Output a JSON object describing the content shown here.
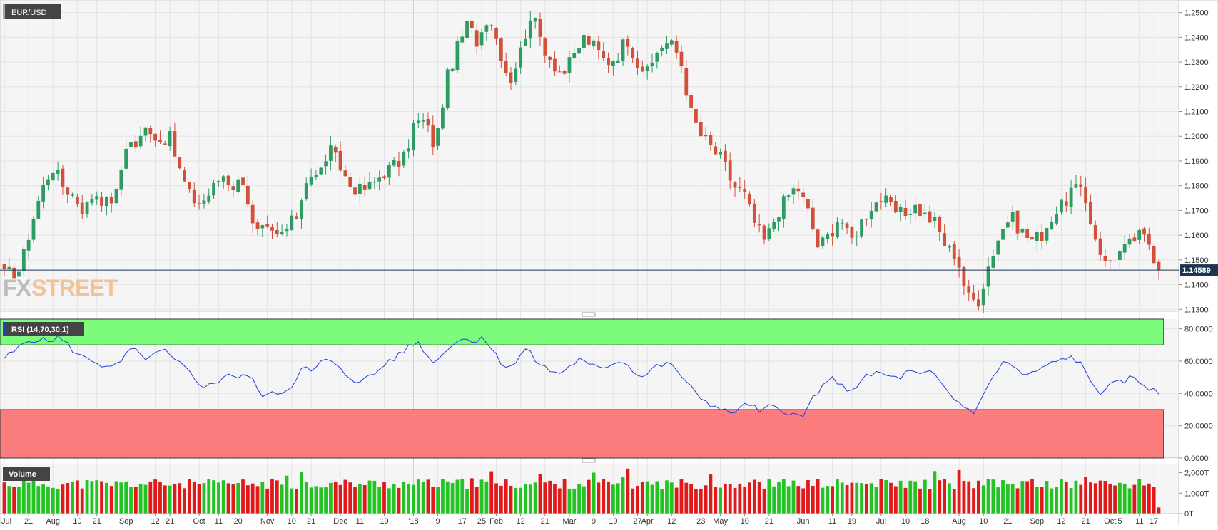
{
  "colors": {
    "up": "#2e9b63",
    "down": "#d2503a",
    "vol_up": "#22c322",
    "vol_down": "#e01a1a",
    "rsi_line": "#1f3fd6",
    "overbought_band": "#7dfb7d",
    "oversold_band": "#fb7d7d",
    "price_line": "#1c3550",
    "label_bg": "#444444",
    "watermark_fx": "#bdbdbd",
    "watermark_street": "#f0c39a"
  },
  "watermark": {
    "fx": "FX",
    "street": "STREET"
  },
  "current_price": "1.14589",
  "chart_data": [
    {
      "type": "candlestick",
      "title": "EUR/USD",
      "ylim": [
        1.1295,
        1.2545
      ],
      "ticks": [
        "1.2500",
        "1.2400",
        "1.2300",
        "1.2200",
        "1.2100",
        "1.2000",
        "1.1900",
        "1.1800",
        "1.1700",
        "1.1600",
        "1.1500",
        "1.1400",
        "1.1300"
      ],
      "series": [
        {
          "x": 0,
          "y": 1.144
        },
        {
          "x": 3,
          "y": 1.146
        },
        {
          "x": 5,
          "y": 1.164
        },
        {
          "x": 7,
          "y": 1.178
        },
        {
          "x": 9,
          "y": 1.188
        },
        {
          "x": 11,
          "y": 1.18
        },
        {
          "x": 13,
          "y": 1.176
        },
        {
          "x": 15,
          "y": 1.17
        },
        {
          "x": 17,
          "y": 1.178
        },
        {
          "x": 19,
          "y": 1.173
        },
        {
          "x": 21,
          "y": 1.176
        },
        {
          "x": 23,
          "y": 1.198
        },
        {
          "x": 25,
          "y": 1.196
        },
        {
          "x": 27,
          "y": 1.205
        },
        {
          "x": 29,
          "y": 1.198
        },
        {
          "x": 31,
          "y": 1.2
        },
        {
          "x": 33,
          "y": 1.186
        },
        {
          "x": 35,
          "y": 1.175
        },
        {
          "x": 37,
          "y": 1.173
        },
        {
          "x": 39,
          "y": 1.178
        },
        {
          "x": 41,
          "y": 1.185
        },
        {
          "x": 43,
          "y": 1.18
        },
        {
          "x": 45,
          "y": 1.183
        },
        {
          "x": 47,
          "y": 1.16
        },
        {
          "x": 49,
          "y": 1.162
        },
        {
          "x": 51,
          "y": 1.159
        },
        {
          "x": 53,
          "y": 1.162
        },
        {
          "x": 55,
          "y": 1.168
        },
        {
          "x": 57,
          "y": 1.185
        },
        {
          "x": 59,
          "y": 1.183
        },
        {
          "x": 61,
          "y": 1.195
        },
        {
          "x": 63,
          "y": 1.188
        },
        {
          "x": 65,
          "y": 1.18
        },
        {
          "x": 67,
          "y": 1.178
        },
        {
          "x": 69,
          "y": 1.18
        },
        {
          "x": 71,
          "y": 1.185
        },
        {
          "x": 73,
          "y": 1.188
        },
        {
          "x": 75,
          "y": 1.19
        },
        {
          "x": 77,
          "y": 1.205
        },
        {
          "x": 79,
          "y": 1.206
        },
        {
          "x": 81,
          "y": 1.195
        },
        {
          "x": 83,
          "y": 1.222
        },
        {
          "x": 85,
          "y": 1.235
        },
        {
          "x": 87,
          "y": 1.245
        },
        {
          "x": 89,
          "y": 1.238
        },
        {
          "x": 91,
          "y": 1.25
        },
        {
          "x": 93,
          "y": 1.236
        },
        {
          "x": 95,
          "y": 1.222
        },
        {
          "x": 97,
          "y": 1.234
        },
        {
          "x": 99,
          "y": 1.25
        },
        {
          "x": 101,
          "y": 1.238
        },
        {
          "x": 103,
          "y": 1.23
        },
        {
          "x": 105,
          "y": 1.225
        },
        {
          "x": 107,
          "y": 1.232
        },
        {
          "x": 109,
          "y": 1.24
        },
        {
          "x": 111,
          "y": 1.236
        },
        {
          "x": 113,
          "y": 1.23
        },
        {
          "x": 115,
          "y": 1.232
        },
        {
          "x": 117,
          "y": 1.24
        },
        {
          "x": 119,
          "y": 1.23
        },
        {
          "x": 121,
          "y": 1.225
        },
        {
          "x": 123,
          "y": 1.236
        },
        {
          "x": 125,
          "y": 1.238
        },
        {
          "x": 127,
          "y": 1.232
        },
        {
          "x": 129,
          "y": 1.21
        },
        {
          "x": 131,
          "y": 1.2
        },
        {
          "x": 133,
          "y": 1.195
        },
        {
          "x": 135,
          "y": 1.19
        },
        {
          "x": 137,
          "y": 1.18
        },
        {
          "x": 139,
          "y": 1.177
        },
        {
          "x": 141,
          "y": 1.165
        },
        {
          "x": 143,
          "y": 1.157
        },
        {
          "x": 145,
          "y": 1.168
        },
        {
          "x": 147,
          "y": 1.175
        },
        {
          "x": 149,
          "y": 1.18
        },
        {
          "x": 151,
          "y": 1.17
        },
        {
          "x": 153,
          "y": 1.155
        },
        {
          "x": 155,
          "y": 1.16
        },
        {
          "x": 157,
          "y": 1.168
        },
        {
          "x": 159,
          "y": 1.157
        },
        {
          "x": 161,
          "y": 1.165
        },
        {
          "x": 163,
          "y": 1.172
        },
        {
          "x": 165,
          "y": 1.175
        },
        {
          "x": 167,
          "y": 1.17
        },
        {
          "x": 169,
          "y": 1.168
        },
        {
          "x": 171,
          "y": 1.172
        },
        {
          "x": 173,
          "y": 1.168
        },
        {
          "x": 175,
          "y": 1.165
        },
        {
          "x": 177,
          "y": 1.155
        },
        {
          "x": 179,
          "y": 1.152
        },
        {
          "x": 181,
          "y": 1.135
        },
        {
          "x": 183,
          "y": 1.133
        },
        {
          "x": 185,
          "y": 1.148
        },
        {
          "x": 187,
          "y": 1.16
        },
        {
          "x": 189,
          "y": 1.168
        },
        {
          "x": 191,
          "y": 1.162
        },
        {
          "x": 193,
          "y": 1.158
        },
        {
          "x": 195,
          "y": 1.16
        },
        {
          "x": 197,
          "y": 1.168
        },
        {
          "x": 199,
          "y": 1.172
        },
        {
          "x": 201,
          "y": 1.18
        },
        {
          "x": 203,
          "y": 1.175
        },
        {
          "x": 205,
          "y": 1.16
        },
        {
          "x": 207,
          "y": 1.148
        },
        {
          "x": 209,
          "y": 1.152
        },
        {
          "x": 211,
          "y": 1.155
        },
        {
          "x": 213,
          "y": 1.16
        },
        {
          "x": 215,
          "y": 1.158
        },
        {
          "x": 217,
          "y": 1.146
        }
      ],
      "last_value": 1.14589
    },
    {
      "type": "line",
      "title": "RSI (14,70,30,1)",
      "ylim": [
        0,
        86
      ],
      "ticks": [
        "80.0000",
        "60.0000",
        "40.0000",
        "20.0000",
        "0.0000"
      ],
      "bands": {
        "overbought": 70,
        "oversold": 30
      },
      "series": [
        {
          "x": 0,
          "y": 62
        },
        {
          "x": 2,
          "y": 66
        },
        {
          "x": 4,
          "y": 72
        },
        {
          "x": 6,
          "y": 74
        },
        {
          "x": 8,
          "y": 72
        },
        {
          "x": 10,
          "y": 75
        },
        {
          "x": 12,
          "y": 70
        },
        {
          "x": 14,
          "y": 63
        },
        {
          "x": 16,
          "y": 62
        },
        {
          "x": 18,
          "y": 58
        },
        {
          "x": 20,
          "y": 55
        },
        {
          "x": 22,
          "y": 60
        },
        {
          "x": 24,
          "y": 68
        },
        {
          "x": 26,
          "y": 62
        },
        {
          "x": 28,
          "y": 63
        },
        {
          "x": 30,
          "y": 67
        },
        {
          "x": 32,
          "y": 60
        },
        {
          "x": 34,
          "y": 56
        },
        {
          "x": 36,
          "y": 48
        },
        {
          "x": 38,
          "y": 44
        },
        {
          "x": 40,
          "y": 47
        },
        {
          "x": 42,
          "y": 53
        },
        {
          "x": 44,
          "y": 49
        },
        {
          "x": 46,
          "y": 52
        },
        {
          "x": 48,
          "y": 40
        },
        {
          "x": 50,
          "y": 39
        },
        {
          "x": 52,
          "y": 41
        },
        {
          "x": 54,
          "y": 44
        },
        {
          "x": 56,
          "y": 58
        },
        {
          "x": 58,
          "y": 52
        },
        {
          "x": 60,
          "y": 62
        },
        {
          "x": 62,
          "y": 58
        },
        {
          "x": 64,
          "y": 52
        },
        {
          "x": 66,
          "y": 48
        },
        {
          "x": 68,
          "y": 49
        },
        {
          "x": 70,
          "y": 53
        },
        {
          "x": 72,
          "y": 60
        },
        {
          "x": 74,
          "y": 63
        },
        {
          "x": 76,
          "y": 69
        },
        {
          "x": 78,
          "y": 72
        },
        {
          "x": 80,
          "y": 60
        },
        {
          "x": 82,
          "y": 62
        },
        {
          "x": 84,
          "y": 71
        },
        {
          "x": 86,
          "y": 74
        },
        {
          "x": 88,
          "y": 72
        },
        {
          "x": 90,
          "y": 76
        },
        {
          "x": 92,
          "y": 65
        },
        {
          "x": 94,
          "y": 57
        },
        {
          "x": 96,
          "y": 58
        },
        {
          "x": 98,
          "y": 68
        },
        {
          "x": 100,
          "y": 60
        },
        {
          "x": 102,
          "y": 55
        },
        {
          "x": 104,
          "y": 52
        },
        {
          "x": 106,
          "y": 56
        },
        {
          "x": 108,
          "y": 61
        },
        {
          "x": 110,
          "y": 57
        },
        {
          "x": 112,
          "y": 56
        },
        {
          "x": 114,
          "y": 58
        },
        {
          "x": 116,
          "y": 61
        },
        {
          "x": 118,
          "y": 55
        },
        {
          "x": 120,
          "y": 50
        },
        {
          "x": 122,
          "y": 56
        },
        {
          "x": 124,
          "y": 58
        },
        {
          "x": 126,
          "y": 57
        },
        {
          "x": 128,
          "y": 47
        },
        {
          "x": 130,
          "y": 40
        },
        {
          "x": 132,
          "y": 35
        },
        {
          "x": 134,
          "y": 31
        },
        {
          "x": 136,
          "y": 28
        },
        {
          "x": 138,
          "y": 30
        },
        {
          "x": 140,
          "y": 34
        },
        {
          "x": 142,
          "y": 28
        },
        {
          "x": 144,
          "y": 32
        },
        {
          "x": 146,
          "y": 30
        },
        {
          "x": 148,
          "y": 28
        },
        {
          "x": 150,
          "y": 24
        },
        {
          "x": 152,
          "y": 38
        },
        {
          "x": 154,
          "y": 44
        },
        {
          "x": 156,
          "y": 50
        },
        {
          "x": 158,
          "y": 42
        },
        {
          "x": 160,
          "y": 44
        },
        {
          "x": 162,
          "y": 50
        },
        {
          "x": 164,
          "y": 53
        },
        {
          "x": 166,
          "y": 51
        },
        {
          "x": 168,
          "y": 49
        },
        {
          "x": 170,
          "y": 54
        },
        {
          "x": 172,
          "y": 51
        },
        {
          "x": 174,
          "y": 53
        },
        {
          "x": 176,
          "y": 47
        },
        {
          "x": 178,
          "y": 38
        },
        {
          "x": 180,
          "y": 33
        },
        {
          "x": 182,
          "y": 28
        },
        {
          "x": 184,
          "y": 38
        },
        {
          "x": 186,
          "y": 52
        },
        {
          "x": 188,
          "y": 60
        },
        {
          "x": 190,
          "y": 56
        },
        {
          "x": 192,
          "y": 50
        },
        {
          "x": 194,
          "y": 54
        },
        {
          "x": 196,
          "y": 57
        },
        {
          "x": 198,
          "y": 60
        },
        {
          "x": 200,
          "y": 63
        },
        {
          "x": 202,
          "y": 60
        },
        {
          "x": 204,
          "y": 48
        },
        {
          "x": 206,
          "y": 41
        },
        {
          "x": 208,
          "y": 45
        },
        {
          "x": 210,
          "y": 47
        },
        {
          "x": 212,
          "y": 50
        },
        {
          "x": 214,
          "y": 46
        },
        {
          "x": 216,
          "y": 42
        },
        {
          "x": 217,
          "y": 39
        }
      ]
    },
    {
      "type": "bar",
      "title": "Volume",
      "ylim": [
        0,
        2400
      ],
      "ticks": [
        "2,000T",
        "1,000T",
        "0T"
      ]
    }
  ],
  "x_axis": {
    "labels": [
      {
        "text": "Jul",
        "x": 0
      },
      {
        "text": "21",
        "x": 5
      },
      {
        "text": "Aug",
        "x": 10
      },
      {
        "text": "10",
        "x": 15
      },
      {
        "text": "21",
        "x": 19
      },
      {
        "text": "Sep",
        "x": 25
      },
      {
        "text": "12",
        "x": 31
      },
      {
        "text": "21",
        "x": 34
      },
      {
        "text": "Oct",
        "x": 40
      },
      {
        "text": "11",
        "x": 44
      },
      {
        "text": "20",
        "x": 48
      },
      {
        "text": "Nov",
        "x": 54
      },
      {
        "text": "10",
        "x": 59
      },
      {
        "text": "21",
        "x": 63
      },
      {
        "text": "Dec",
        "x": 69
      },
      {
        "text": "11",
        "x": 73
      },
      {
        "text": "19",
        "x": 78
      },
      {
        "text": "'18",
        "x": 84
      },
      {
        "text": "9",
        "x": 89
      },
      {
        "text": "17",
        "x": 94
      },
      {
        "text": "25",
        "x": 98
      },
      {
        "text": "Feb",
        "x": 101
      },
      {
        "text": "12",
        "x": 106
      },
      {
        "text": "21",
        "x": 111
      },
      {
        "text": "Mar",
        "x": 116
      },
      {
        "text": "9",
        "x": 121
      },
      {
        "text": "19",
        "x": 125
      },
      {
        "text": "27",
        "x": 130
      },
      {
        "text": "Apr",
        "x": 132
      },
      {
        "text": "12",
        "x": 137
      },
      {
        "text": "23",
        "x": 143
      },
      {
        "text": "May",
        "x": 147
      },
      {
        "text": "10",
        "x": 152
      },
      {
        "text": "21",
        "x": 157
      },
      {
        "text": "Jun",
        "x": 164
      },
      {
        "text": "11",
        "x": 170
      },
      {
        "text": "19",
        "x": 174
      },
      {
        "text": "Jul",
        "x": 180
      },
      {
        "text": "10",
        "x": 185
      },
      {
        "text": "18",
        "x": 189
      },
      {
        "text": "Aug",
        "x": 196
      },
      {
        "text": "10",
        "x": 201
      },
      {
        "text": "21",
        "x": 206
      },
      {
        "text": "Sep",
        "x": 212
      },
      {
        "text": "12",
        "x": 217
      },
      {
        "text": "21",
        "x": 222
      },
      {
        "text": "Oct",
        "x": 227
      },
      {
        "text": "5",
        "x": 229
      },
      {
        "text": "11",
        "x": 233
      },
      {
        "text": "17",
        "x": 236
      }
    ]
  }
}
